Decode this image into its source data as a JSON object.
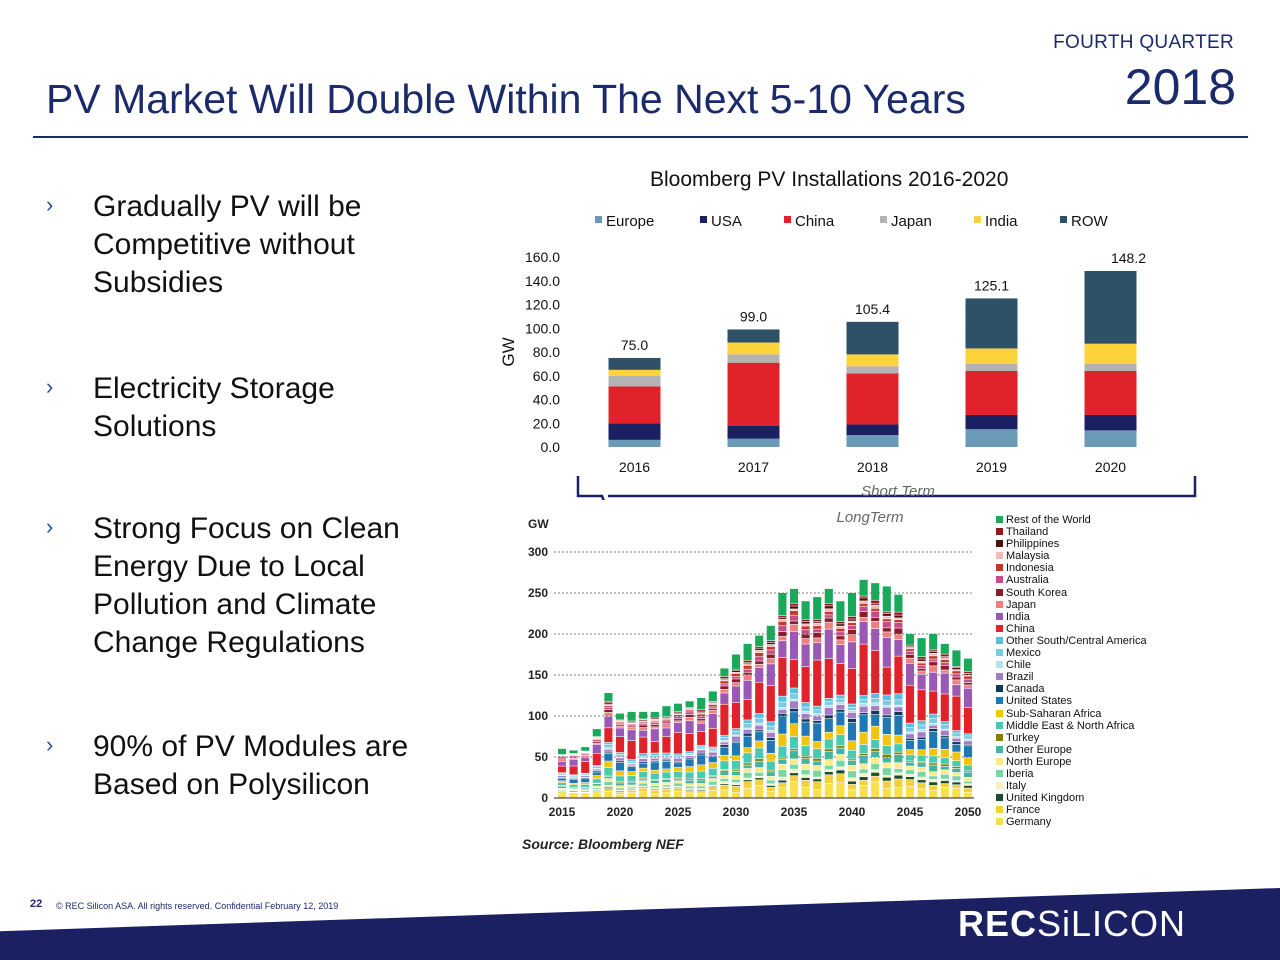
{
  "header": {
    "quarter": "FOURTH QUARTER",
    "year": "2018",
    "title": "PV Market Will Double Within The Next 5-10 Years"
  },
  "bullets": [
    {
      "marker": "›",
      "lines": [
        "Gradually PV will be",
        "Competitive without",
        "Subsidies"
      ]
    },
    {
      "marker": "›",
      "lines": [
        "Electricity Storage",
        "Solutions"
      ]
    },
    {
      "marker": "›",
      "lines": [
        "Strong Focus on Clean",
        "Energy Due to Local",
        "Pollution and Climate",
        "Change Regulations"
      ]
    },
    {
      "marker": "›",
      "lines": [
        "90% of PV Modules are",
        "Based on Polysilicon"
      ]
    }
  ],
  "chart_data": [
    {
      "type": "bar",
      "stacked": true,
      "title": "Bloomberg PV Installations 2016-2020",
      "ylabel": "GW",
      "xlabel": "",
      "ylim": [
        0,
        160
      ],
      "yticks": [
        "0.0",
        "20.0",
        "40.0",
        "60.0",
        "80.0",
        "100.0",
        "120.0",
        "140.0",
        "160.0"
      ],
      "categories": [
        "2016",
        "2017",
        "2018",
        "2019",
        "2020"
      ],
      "totals": [
        75.0,
        99.0,
        105.4,
        125.1,
        148.2
      ],
      "total_labels": [
        "75.0",
        "99.0",
        "105.4",
        "125.1",
        "148.2"
      ],
      "legend_position": "top",
      "series": [
        {
          "name": "Europe",
          "color": "#6a9ab8",
          "values": [
            6,
            7,
            10,
            15,
            14
          ]
        },
        {
          "name": "USA",
          "color": "#1b2063",
          "values": [
            14,
            11,
            9,
            12,
            13
          ]
        },
        {
          "name": "China",
          "color": "#e0232a",
          "values": [
            31,
            53,
            43,
            37,
            37
          ]
        },
        {
          "name": "Japan",
          "color": "#b3b3b3",
          "values": [
            9,
            7,
            6,
            6,
            6
          ]
        },
        {
          "name": "India",
          "color": "#fcd33a",
          "values": [
            5,
            10,
            10,
            13,
            17
          ]
        },
        {
          "name": "ROW",
          "color": "#2e5167",
          "values": [
            10,
            11,
            27.4,
            42.1,
            61.2
          ]
        }
      ],
      "annotations": [
        "Short Term",
        "LongTerm"
      ]
    },
    {
      "type": "bar",
      "stacked": true,
      "title": "",
      "ylabel": "GW",
      "xlabel": "",
      "ylim": [
        0,
        300
      ],
      "yticks": [
        "0",
        "50",
        "100",
        "150",
        "200",
        "250",
        "300"
      ],
      "xticks": [
        "2015",
        "2020",
        "2025",
        "2030",
        "2035",
        "2040",
        "2045",
        "2050"
      ],
      "x_start": 2015,
      "x_end": 2050,
      "legend_position": "right",
      "totals": [
        60,
        58,
        62,
        84,
        128,
        103,
        105,
        105,
        105,
        112,
        115,
        118,
        122,
        130,
        158,
        175,
        188,
        198,
        210,
        250,
        255,
        240,
        245,
        255,
        240,
        250,
        266,
        262,
        258,
        248,
        200,
        195,
        200,
        188,
        180,
        170
      ],
      "series_names": [
        "Rest of the World",
        "Thailand",
        "Philippines",
        "Malaysia",
        "Indonesia",
        "Australia",
        "South Korea",
        "Japan",
        "India",
        "China",
        "Other South/Central America",
        "Mexico",
        "Chile",
        "Brazil",
        "Canada",
        "United States",
        "Sub-Saharan Africa",
        "Middle East & North Africa",
        "Turkey",
        "Other Europe",
        "North Europe",
        "Iberia",
        "Italy",
        "United Kingdom",
        "France",
        "Germany"
      ],
      "series_colors": [
        "#1aa85a",
        "#8b1a1a",
        "#4b1010",
        "#f4b8b8",
        "#c0392b",
        "#c74a8a",
        "#8a1c2c",
        "#f08080",
        "#9b59b6",
        "#e0232a",
        "#5bc0de",
        "#7ec8e3",
        "#b8e0f0",
        "#a67cc4",
        "#0b3a5c",
        "#1f78b4",
        "#f1c40f",
        "#48c9b0",
        "#808000",
        "#45b39d",
        "#ffeb8a",
        "#76d7a4",
        "#f7f1c0",
        "#1a4d2e",
        "#f4d03f",
        "#f9e04b"
      ],
      "source": "Source: Bloomberg NEF"
    }
  ],
  "footer": {
    "page_number": "22",
    "copyright": "© REC Silicon ASA. All rights reserved. Confidential  February 12, 2019",
    "logo_bold": "REC",
    "logo_light": "SiLICON"
  }
}
